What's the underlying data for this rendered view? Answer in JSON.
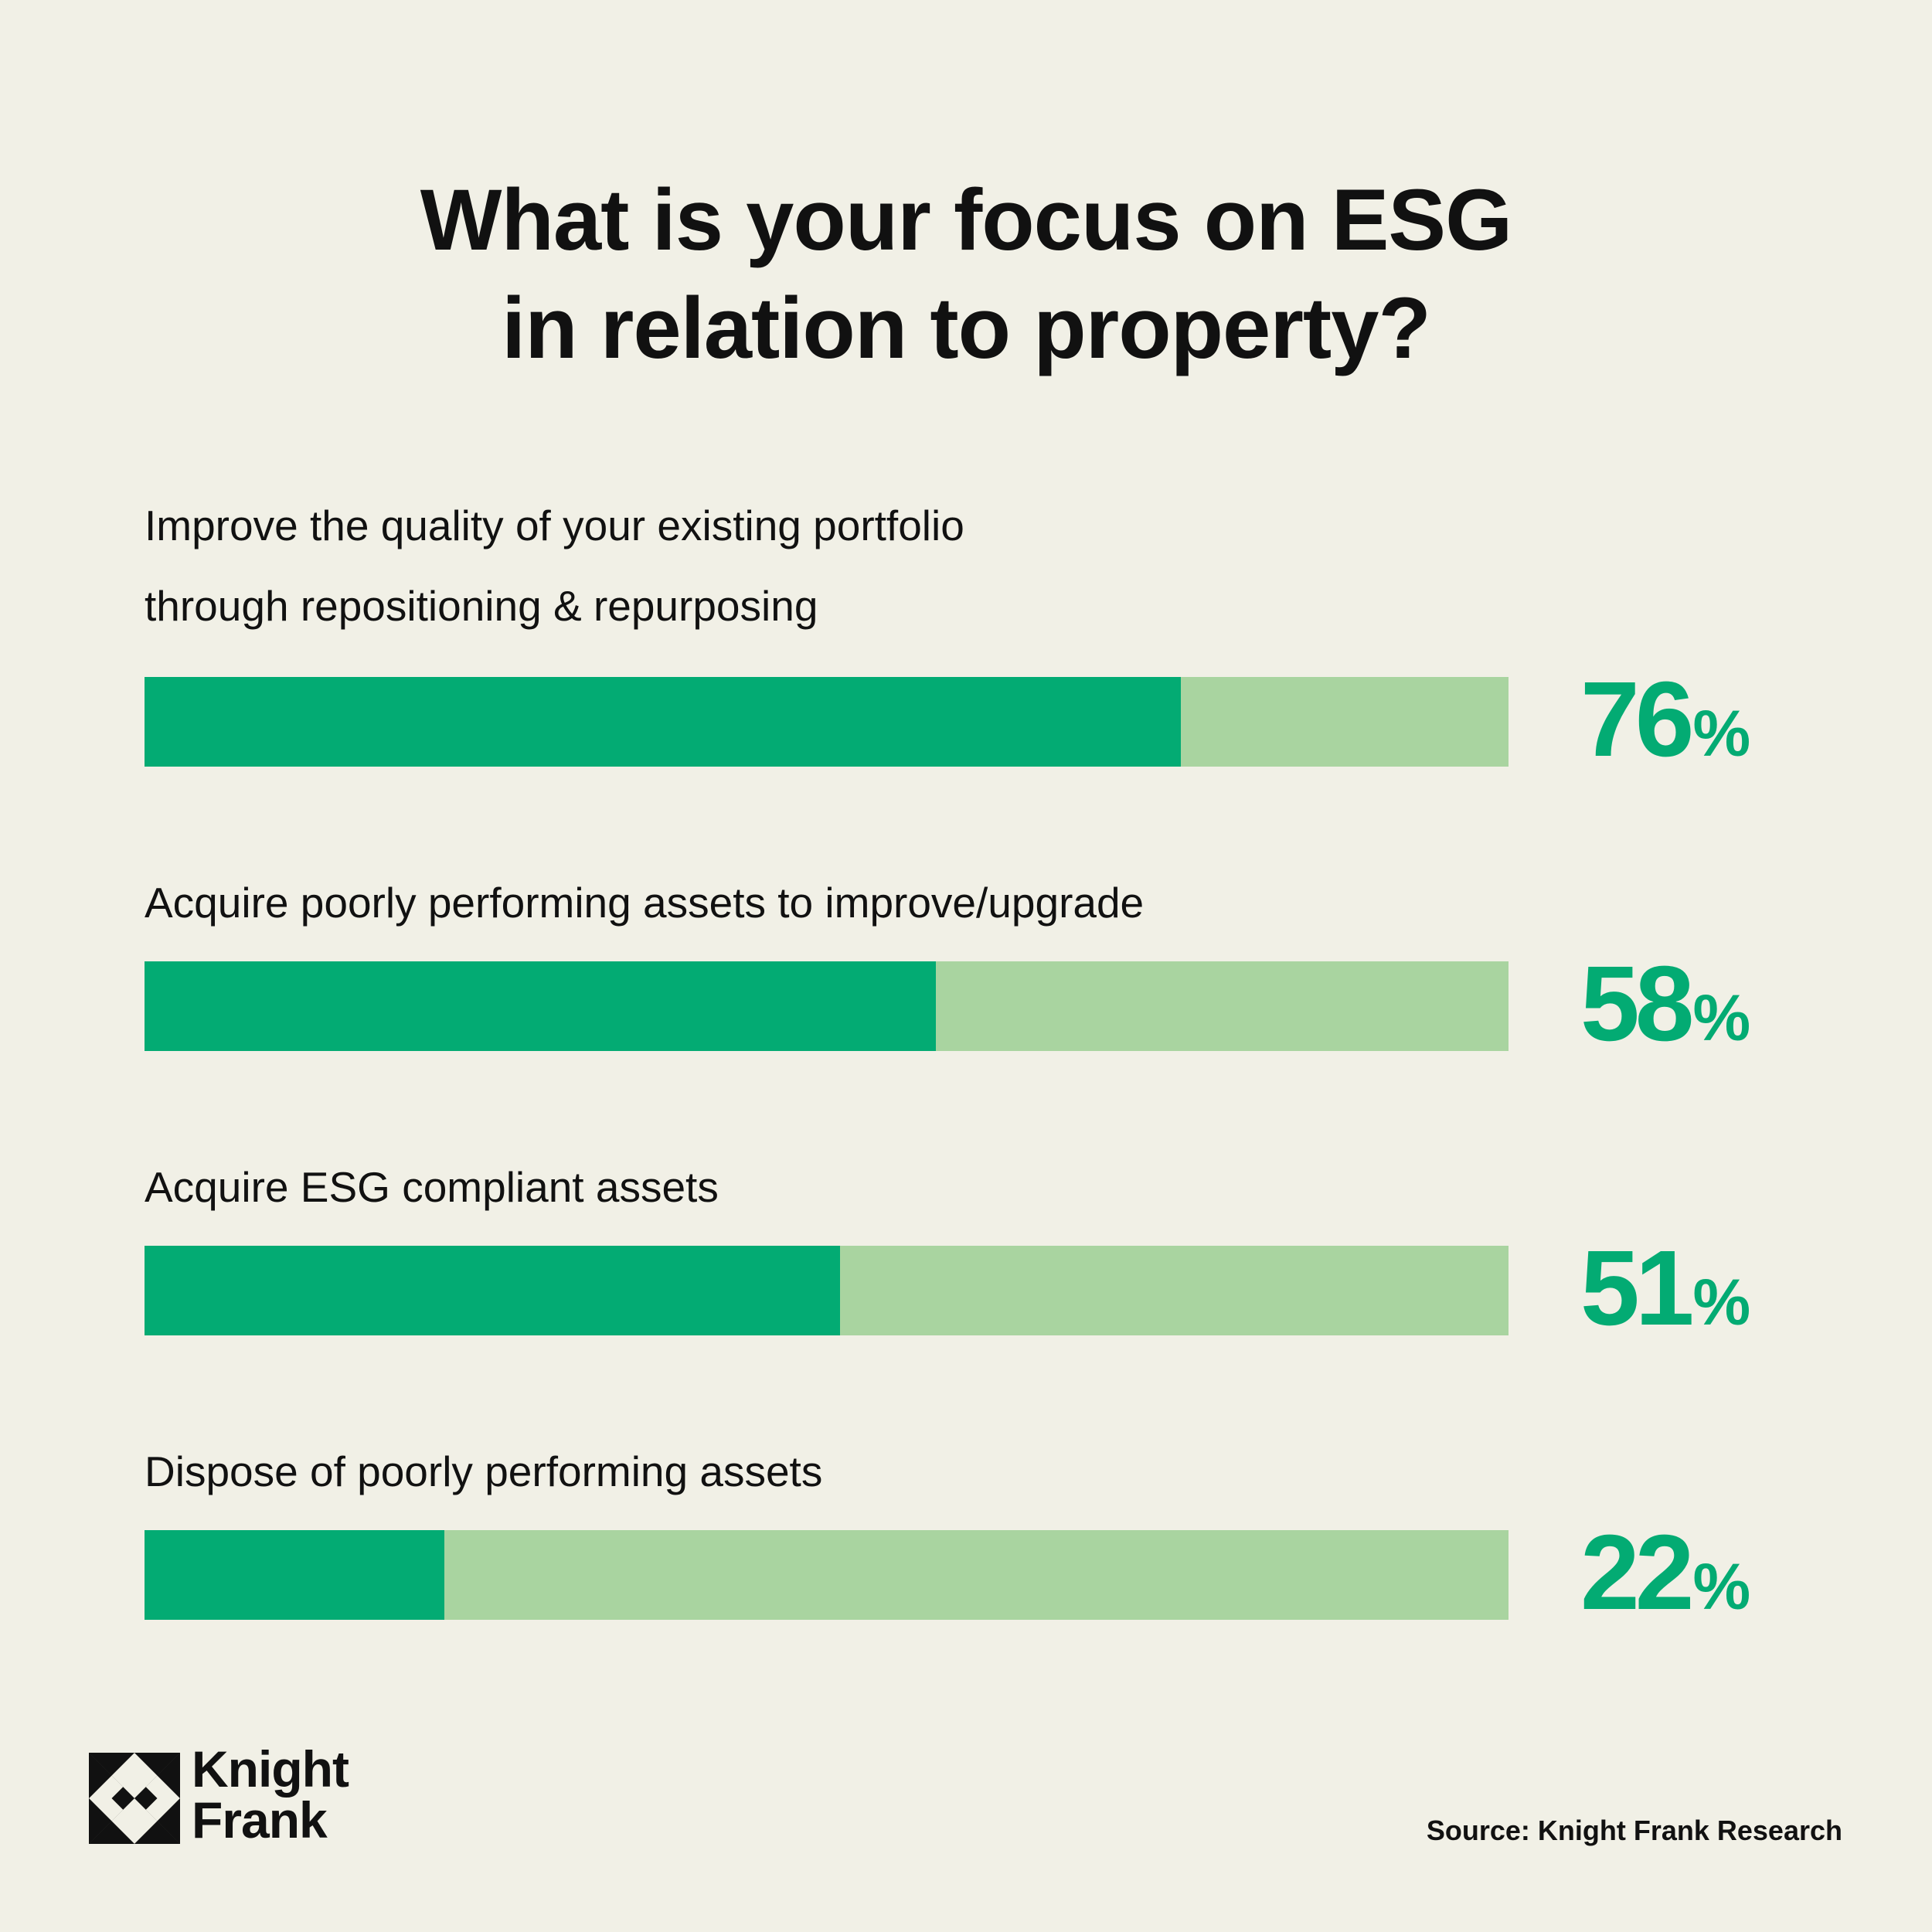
{
  "title_lines": [
    "What is your focus on ESG",
    "in relation to property?"
  ],
  "colors": {
    "background": "#f1f0e6",
    "bar_fill": "#03ab73",
    "bar_track": "#a9d4a0",
    "value_text": "#03ab73",
    "text": "#111111"
  },
  "chart_data": {
    "type": "bar",
    "orientation": "horizontal",
    "title": "What is your focus on ESG in relation to property?",
    "xlim": [
      0,
      100
    ],
    "grid": false,
    "categories": [
      "Improve the quality of your existing portfolio through repositioning & repurposing",
      "Acquire poorly performing assets to improve/upgrade",
      "Acquire ESG compliant assets",
      "Dispose of poorly performing assets"
    ],
    "values": [
      76,
      58,
      51,
      22
    ],
    "items": [
      {
        "label_lines": [
          "Improve the quality of your existing portfolio",
          "through repositioning & repurposing"
        ],
        "value": 76,
        "value_text": "76",
        "unit": "%"
      },
      {
        "label_lines": [
          "Acquire poorly performing assets to improve/upgrade"
        ],
        "value": 58,
        "value_text": "58",
        "unit": "%"
      },
      {
        "label_lines": [
          "Acquire ESG compliant assets"
        ],
        "value": 51,
        "value_text": "51",
        "unit": "%"
      },
      {
        "label_lines": [
          "Dispose of poorly performing assets"
        ],
        "value": 22,
        "value_text": "22",
        "unit": "%"
      }
    ]
  },
  "logo": {
    "line1": "Knight",
    "line2": "Frank",
    "icon": "knight-frank-diamond-icon"
  },
  "source": "Source: Knight Frank Research"
}
